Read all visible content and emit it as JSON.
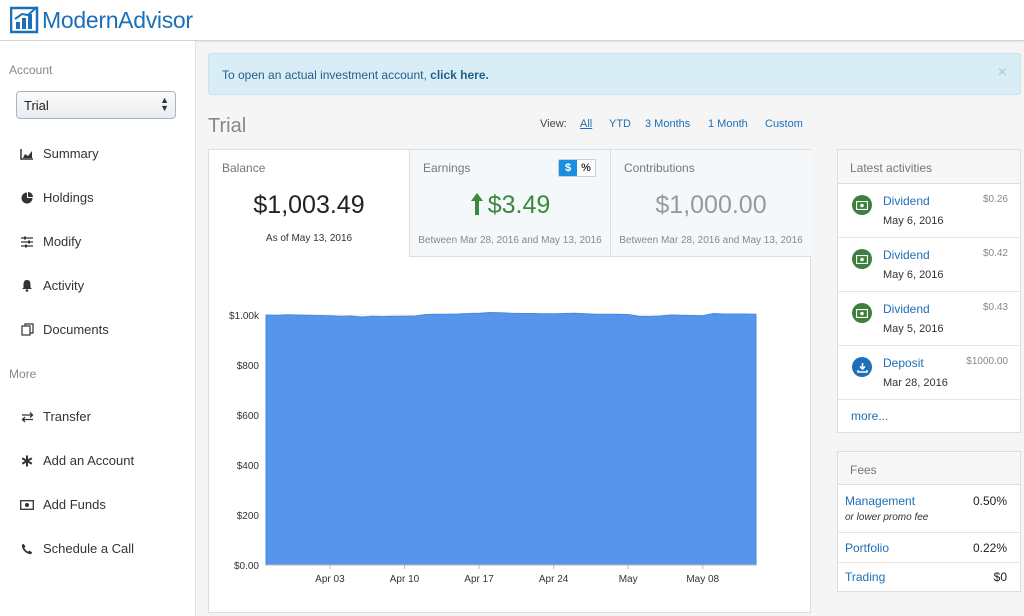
{
  "brand": {
    "name": "ModernAdvisor",
    "color": "#1d6fb8"
  },
  "alert": {
    "text": "To open an actual investment account, ",
    "link": "click here.",
    "close": "×"
  },
  "sidebar": {
    "account_heading": "Account",
    "account_select": "Trial",
    "more_heading": "More",
    "items": [
      {
        "label": "Summary",
        "icon": "area-chart-icon"
      },
      {
        "label": "Holdings",
        "icon": "pie-chart-icon"
      },
      {
        "label": "Modify",
        "icon": "sliders-icon"
      },
      {
        "label": "Activity",
        "icon": "bell-icon"
      },
      {
        "label": "Documents",
        "icon": "documents-icon"
      }
    ],
    "more_items": [
      {
        "label": "Transfer",
        "icon": "transfer-icon"
      },
      {
        "label": "Add an Account",
        "icon": "asterisk-icon"
      },
      {
        "label": "Add Funds",
        "icon": "money-icon"
      },
      {
        "label": "Schedule a Call",
        "icon": "phone-icon"
      }
    ]
  },
  "page": {
    "title": "Trial",
    "view_label": "View:",
    "views": [
      "All",
      "YTD",
      "3 Months",
      "1 Month",
      "Custom"
    ],
    "active_view": "All"
  },
  "stats": {
    "balance": {
      "label": "Balance",
      "value": "$1,003.49",
      "sub": "As of May 13, 2016"
    },
    "earnings": {
      "label": "Earnings",
      "value": "$3.49",
      "sub": "Between Mar 28, 2016 and May 13, 2016",
      "toggle_dollar": "$",
      "toggle_percent": "%"
    },
    "contributions": {
      "label": "Contributions",
      "value": "$1,000.00",
      "sub": "Between Mar 28, 2016 and May 13, 2016"
    }
  },
  "chart_data": {
    "type": "area",
    "title": "",
    "xlabel": "",
    "ylabel": "",
    "ylim": [
      0,
      1000
    ],
    "y_ticks": [
      0,
      200,
      400,
      600,
      800,
      1000
    ],
    "y_tick_labels": [
      "$0.00",
      "$200",
      "$400",
      "$600",
      "$800",
      "$1.00k"
    ],
    "x_ticks": [
      "Apr 03",
      "Apr 10",
      "Apr 17",
      "Apr 24",
      "May",
      "May 08"
    ],
    "x_tick_days": [
      6,
      13,
      20,
      27,
      34,
      41
    ],
    "x_range_days": [
      0,
      46
    ],
    "series": [
      {
        "name": "Balance",
        "color": "#5695e9",
        "days": [
          0,
          1,
          2,
          3,
          4,
          5,
          6,
          7,
          8,
          9,
          10,
          11,
          12,
          13,
          14,
          15,
          16,
          17,
          18,
          19,
          20,
          21,
          22,
          23,
          24,
          25,
          26,
          27,
          28,
          29,
          30,
          31,
          32,
          33,
          34,
          35,
          36,
          37,
          38,
          39,
          40,
          41,
          42,
          43,
          44,
          45,
          46
        ],
        "values": [
          1000,
          999,
          1001,
          1000,
          999,
          998,
          997,
          995,
          996,
          992,
          995,
          994,
          995,
          995,
          996,
          1002,
          1003,
          1003,
          1004,
          1006,
          1007,
          1010,
          1009,
          1007,
          1006,
          1006,
          1005,
          1005,
          1006,
          1007,
          1005,
          1003,
          1003,
          1003,
          1002,
          995,
          994,
          996,
          1000,
          999,
          998,
          997,
          1006,
          1004,
          1004,
          1004,
          1003
        ]
      }
    ]
  },
  "activities": {
    "heading": "Latest activities",
    "items": [
      {
        "title": "Dividend",
        "date": "May 6, 2016",
        "amount": "$0.26",
        "kind": "dividend"
      },
      {
        "title": "Dividend",
        "date": "May 6, 2016",
        "amount": "$0.42",
        "kind": "dividend"
      },
      {
        "title": "Dividend",
        "date": "May 5, 2016",
        "amount": "$0.43",
        "kind": "dividend"
      },
      {
        "title": "Deposit",
        "date": "Mar 28, 2016",
        "amount": "$1000.00",
        "kind": "deposit"
      }
    ],
    "more": "more..."
  },
  "fees": {
    "heading": "Fees",
    "rows": [
      {
        "name": "Management",
        "value": "0.50%",
        "note": "or lower promo fee"
      },
      {
        "name": "Portfolio",
        "value": "0.22%"
      },
      {
        "name": "Trading",
        "value": "$0"
      }
    ]
  },
  "colors": {
    "dividend": "#3d7f3d",
    "deposit": "#1d6fb8",
    "earnings": "#3b8a3b"
  }
}
